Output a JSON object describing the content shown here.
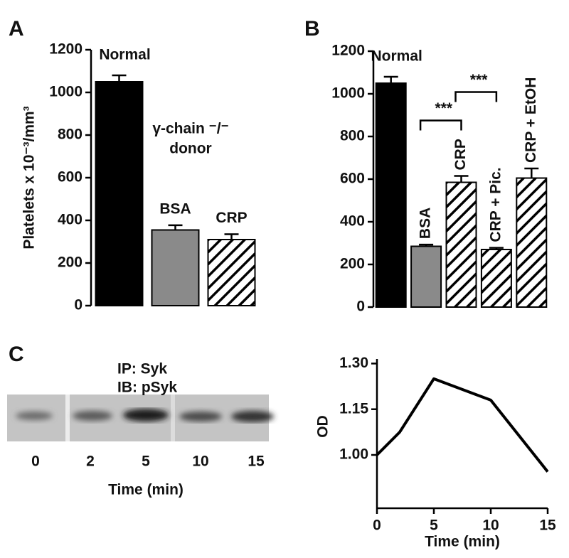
{
  "chart_data": [
    {
      "type": "bar",
      "panel": "A",
      "ylabel": "Platelets x 10⁻³/mm³",
      "categories": [
        "Normal",
        "BSA",
        "CRP"
      ],
      "values": [
        1050,
        355,
        310
      ],
      "errors": [
        30,
        22,
        25
      ],
      "colors": [
        "#000000",
        "#8a8a8a",
        "#ffffff"
      ],
      "hatch": [
        false,
        false,
        true
      ],
      "ylim": [
        0,
        1200
      ],
      "yticks": [
        0,
        200,
        400,
        600,
        800,
        1000,
        1200
      ],
      "annotations": [
        "γ-chain ⁻/⁻",
        "donor"
      ]
    },
    {
      "type": "bar",
      "panel": "B",
      "categories": [
        "Normal",
        "BSA",
        "CRP",
        "CRP + Pic.",
        "CRP + EtOH"
      ],
      "values": [
        1050,
        285,
        585,
        270,
        605
      ],
      "errors": [
        30,
        8,
        30,
        8,
        45
      ],
      "colors": [
        "#000000",
        "#8a8a8a",
        "#ffffff",
        "#ffffff",
        "#ffffff"
      ],
      "hatch": [
        false,
        false,
        true,
        true,
        true
      ],
      "ylim": [
        0,
        1200
      ],
      "yticks": [
        0,
        200,
        400,
        600,
        800,
        1000,
        1200
      ],
      "significance": [
        "***",
        "***"
      ]
    },
    {
      "type": "blot",
      "panel": "C",
      "title": "IP: Syk",
      "subtitle": "IB: pSyk",
      "categories": [
        "0",
        "2",
        "5",
        "10",
        "15"
      ],
      "xlabel": "Time (min)"
    },
    {
      "type": "line",
      "xlabel": "Time (min)",
      "ylabel": "OD",
      "x": [
        0,
        2,
        5,
        10,
        15
      ],
      "values": [
        1.0,
        1.075,
        1.25,
        1.18,
        0.945
      ],
      "color": "#000000",
      "xlim": [
        0,
        15
      ],
      "xticks": [
        0,
        5,
        10,
        15
      ],
      "ylim": [
        0.825,
        1.315
      ],
      "yticks": [
        {
          "value": 1.0,
          "label": "1.00"
        },
        {
          "value": 1.15,
          "label": "1.15"
        },
        {
          "value": 1.3,
          "label": "1.30"
        }
      ]
    }
  ]
}
